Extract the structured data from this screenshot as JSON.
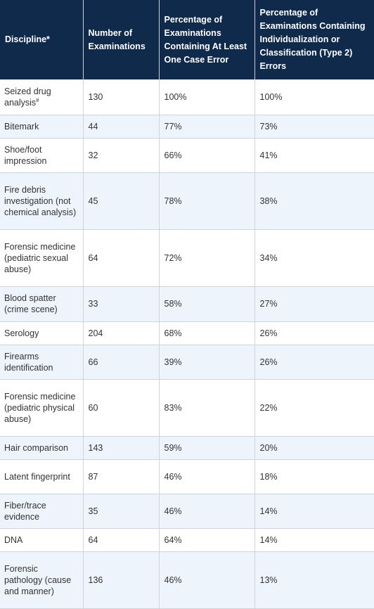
{
  "table": {
    "headers": [
      "Discipline*",
      "Number of Examinations",
      "Percentage of Examinations Containing At Least One Case Error",
      "Percentage of Examinations Containing Individualization or Classification (Type 2) Errors"
    ],
    "rows": [
      {
        "discipline": "Seized drug analysis",
        "marker": "#",
        "count": "130",
        "any_error": "100%",
        "type2_error": "100%"
      },
      {
        "discipline": "Bitemark",
        "marker": "",
        "count": "44",
        "any_error": "77%",
        "type2_error": "73%"
      },
      {
        "discipline": "Shoe/foot impression",
        "marker": "",
        "count": "32",
        "any_error": "66%",
        "type2_error": "41%"
      },
      {
        "discipline": "Fire debris investigation (not chemical analysis)",
        "marker": "",
        "count": "45",
        "any_error": "78%",
        "type2_error": "38%"
      },
      {
        "discipline": "Forensic medicine (pediatric sexual abuse)",
        "marker": "",
        "count": "64",
        "any_error": "72%",
        "type2_error": "34%"
      },
      {
        "discipline": "Blood spatter (crime scene)",
        "marker": "",
        "count": "33",
        "any_error": "58%",
        "type2_error": "27%"
      },
      {
        "discipline": "Serology",
        "marker": "",
        "count": "204",
        "any_error": "68%",
        "type2_error": "26%"
      },
      {
        "discipline": "Firearms identification",
        "marker": "",
        "count": "66",
        "any_error": "39%",
        "type2_error": "26%"
      },
      {
        "discipline": "Forensic medicine (pediatric physical abuse)",
        "marker": "",
        "count": "60",
        "any_error": "83%",
        "type2_error": "22%"
      },
      {
        "discipline": "Hair comparison",
        "marker": "",
        "count": "143",
        "any_error": "59%",
        "type2_error": "20%"
      },
      {
        "discipline": "Latent fingerprint",
        "marker": "",
        "count": "87",
        "any_error": "46%",
        "type2_error": "18%"
      },
      {
        "discipline": "Fiber/trace evidence",
        "marker": "",
        "count": "35",
        "any_error": "46%",
        "type2_error": "14%"
      },
      {
        "discipline": "DNA",
        "marker": "",
        "count": "64",
        "any_error": "64%",
        "type2_error": "14%"
      },
      {
        "discipline": "Forensic pathology (cause and manner)",
        "marker": "",
        "count": "136",
        "any_error": "46%",
        "type2_error": "13%"
      }
    ]
  }
}
